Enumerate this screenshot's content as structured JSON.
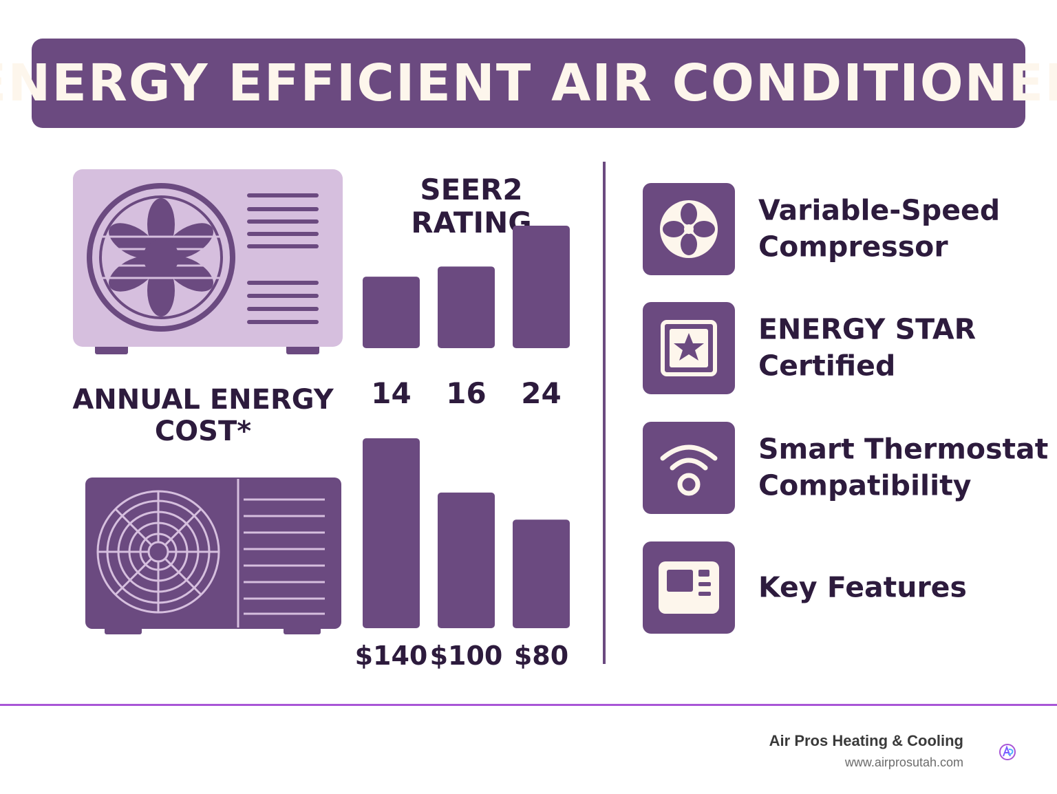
{
  "colors": {
    "primary": "#6b4a80",
    "light": "#d6bfde",
    "text": "#2d1b3d",
    "cream": "#fdf6ec",
    "accent_line": "#a855d6",
    "muted": "#6b6b6b"
  },
  "banner": {
    "title": "ENERGY EFFICIENT AIR CONDITIONER"
  },
  "chart_data": [
    {
      "type": "bar",
      "title": "SEER2 RATING",
      "categories": [
        "14",
        "16",
        "24"
      ],
      "values": [
        14,
        16,
        24
      ],
      "labels": [
        "14",
        "16",
        "24"
      ],
      "ylim": [
        0,
        24
      ]
    },
    {
      "type": "bar",
      "title": "ANNUAL ENERGY COST*",
      "categories": [
        "14",
        "16",
        "24"
      ],
      "values": [
        140,
        100,
        80
      ],
      "labels": [
        "$140",
        "$100",
        "$80"
      ],
      "ylim": [
        0,
        140
      ]
    }
  ],
  "cost_title_lines": [
    "ANNUAL ENERGY",
    "COST*"
  ],
  "features": [
    {
      "icon": "fan-icon",
      "lines": [
        "Variable-Speed",
        "Compressor"
      ]
    },
    {
      "icon": "star-badge-icon",
      "lines": [
        "ENERGY STAR",
        "Certified"
      ]
    },
    {
      "icon": "wifi-signal-icon",
      "lines": [
        "Smart Thermostat",
        "Compatibility"
      ]
    },
    {
      "icon": "control-panel-icon",
      "lines": [
        "Key Features"
      ]
    }
  ],
  "footer": {
    "company": "Air Pros Heating & Cooling",
    "url": "www.airprosutah.com"
  }
}
